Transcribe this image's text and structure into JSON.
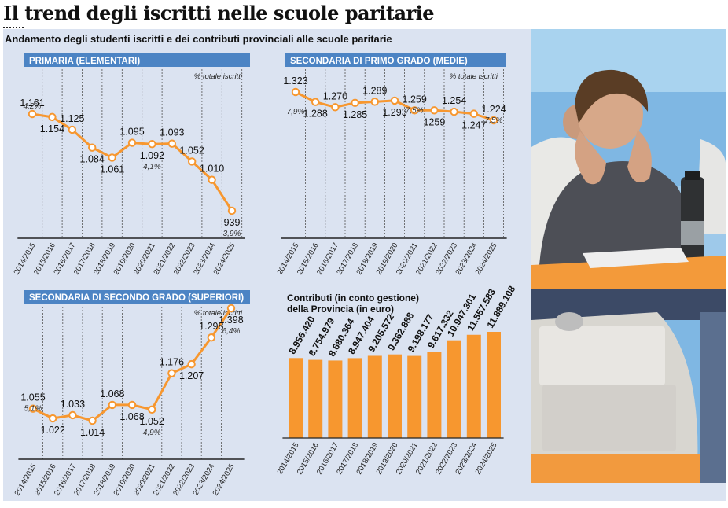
{
  "page": {
    "title": "Il trend degli iscritti nelle scuole paritarie",
    "subtitle": "Andamento degli studenti iscritti e dei contributi provinciali alle scuole paritarie"
  },
  "colors": {
    "accent": "#f7972f",
    "header_bg": "#4c84c4",
    "panel_bg": "#dbe3f1"
  },
  "chart_data": [
    {
      "type": "line",
      "title": "PRIMARIA (ELEMENTARI)",
      "note": "% totale iscritti",
      "x": [
        "2014/2015",
        "2015/2016",
        "2016/2017",
        "2017/2018",
        "2018/2019",
        "2019/2020",
        "2020/2021",
        "2021/2022",
        "2022/2023",
        "2023/2024",
        "2024/2025"
      ],
      "values": [
        1161,
        1154,
        1125,
        1084,
        1061,
        1095,
        1092,
        1093,
        1052,
        1010,
        939
      ],
      "labels": [
        "1.161",
        "1.154",
        "1.125",
        "1.084",
        "1.061",
        "1.095",
        "1.092",
        "1.093",
        "1.052",
        "1.010",
        "939"
      ],
      "pct_labels": [
        {
          "index": 0,
          "text": "4,2%"
        },
        {
          "index": 6,
          "text": "4,1%"
        },
        {
          "index": 10,
          "text": "3,9%"
        }
      ]
    },
    {
      "type": "line",
      "title": "SECONDARIA DI PRIMO GRADO (MEDIE)",
      "note": "% totale iscritti",
      "x": [
        "2014/2015",
        "2015/2016",
        "2016/2017",
        "2017/2018",
        "2018/2019",
        "2019/2020",
        "2020/2021",
        "2021/2022",
        "2022/2023",
        "2023/2024",
        "2024/2025"
      ],
      "values": [
        1323,
        1288,
        1270,
        1285,
        1289,
        1293,
        1259,
        1259,
        1254,
        1247,
        1224
      ],
      "labels": [
        "1.323",
        "1.288",
        "1.270",
        "1.285",
        "1.289",
        "1.293",
        "1.259",
        "1259",
        "1.254",
        "1.247",
        "1.224"
      ],
      "pct_labels": [
        {
          "index": 0,
          "text": "7,9%"
        },
        {
          "index": 6,
          "text": "7,5%"
        },
        {
          "index": 10,
          "text": "7,5%"
        }
      ]
    },
    {
      "type": "line",
      "title": "SECONDARIA DI SECONDO GRADO (SUPERIORI)",
      "note": "% totale iscritti",
      "x": [
        "2014/2015",
        "2015/2016",
        "2016/2017",
        "2017/2018",
        "2018/2019",
        "2019/2020",
        "2020/2021",
        "2021/2022",
        "2022/2023",
        "2023/2024",
        "2024/2025"
      ],
      "values": [
        1055,
        1022,
        1033,
        1014,
        1068,
        1068,
        1052,
        1176,
        1207,
        1298,
        1398
      ],
      "labels": [
        "1.055",
        "1.022",
        "1.033",
        "1.014",
        "1.068",
        "1.068",
        "1.052",
        "1.176",
        "1.207",
        "1.298",
        "1.398"
      ],
      "pct_labels": [
        {
          "index": 0,
          "text": "5,1%"
        },
        {
          "index": 6,
          "text": "4,9%"
        },
        {
          "index": 10,
          "text": "6,4%"
        }
      ]
    },
    {
      "type": "bar",
      "title_lines": [
        "Contributi (in conto gestione)",
        "della Provincia (in euro)"
      ],
      "categories": [
        "2014/2015",
        "2015/2016",
        "2016/2017",
        "2017/2018",
        "2018/2019",
        "2019/2020",
        "2020/2021",
        "2021/2022",
        "2022/2023",
        "2023/2024",
        "2024/2025"
      ],
      "values": [
        8956420,
        8754979,
        8680364,
        8947404,
        9205572,
        9362888,
        9198177,
        9617332,
        10947301,
        11557583,
        11889108
      ],
      "labels": [
        "8.956.420",
        "8.754.979",
        "8.680.364",
        "8.947.404",
        "9.205.572",
        "9.362.888",
        "9.198.177",
        "9.617.332",
        "10.947.301",
        "11.557.583",
        "11.889.108"
      ]
    }
  ]
}
